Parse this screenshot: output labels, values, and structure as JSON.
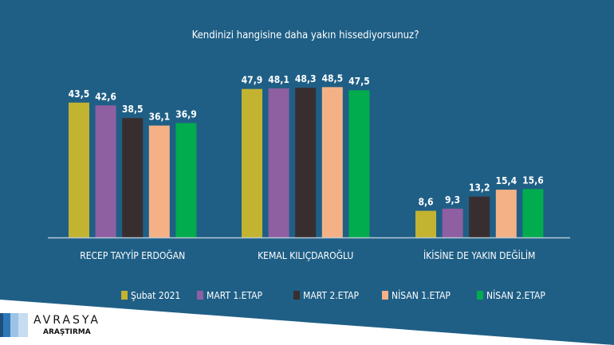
{
  "chart_data": {
    "type": "bar",
    "title": "Kendinizi hangisine daha yakın hissediyorsunuz?",
    "categories": [
      "RECEP TAYYİP ERDOĞAN",
      "KEMAL KILIÇDAROĞLU",
      "İKİSİNE DE YAKIN DEĞİLİM"
    ],
    "series": [
      {
        "name": "Şubat 2021",
        "color": "#c2b331",
        "values": [
          43.5,
          47.9,
          8.6
        ]
      },
      {
        "name": "MART 1.ETAP",
        "color": "#8e5fa1",
        "values": [
          42.6,
          48.1,
          9.3
        ]
      },
      {
        "name": "MART 2.ETAP",
        "color": "#382e30",
        "values": [
          38.5,
          48.3,
          13.2
        ]
      },
      {
        "name": "NİSAN 1.ETAP",
        "color": "#f4b186",
        "values": [
          36.1,
          48.5,
          15.4
        ]
      },
      {
        "name": "NİSAN 2.ETAP",
        "color": "#00ac4e",
        "values": [
          36.9,
          47.5,
          15.6
        ]
      }
    ],
    "labels": [
      [
        "43,5",
        "47,9",
        "8,6"
      ],
      [
        "42,6",
        "48,1",
        "9,3"
      ],
      [
        "38,5",
        "48,3",
        "13,2"
      ],
      [
        "36,1",
        "48,5",
        "15,4"
      ],
      [
        "36,9",
        "47,5",
        "15,6"
      ]
    ],
    "xlabel": "",
    "ylabel": "",
    "ylim": [
      0,
      50
    ],
    "grid": false,
    "legend": "bottom"
  },
  "logo": {
    "name": "AVRASYA",
    "sub": "ARAŞTIRMA"
  },
  "colors": {
    "background": "#1f5f86"
  }
}
